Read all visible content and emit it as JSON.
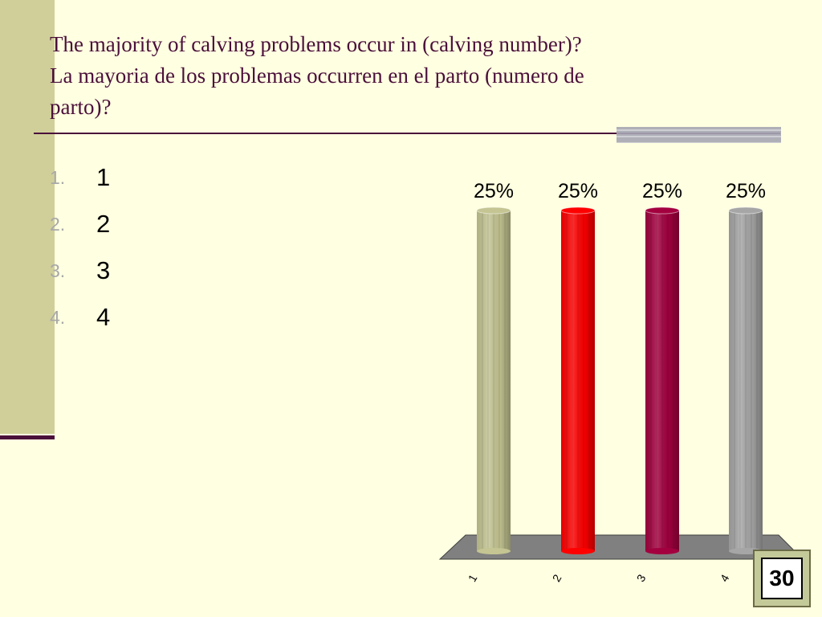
{
  "slide": {
    "title_lines": [
      "The majority of calving problems occur in (calving number)?",
      "La mayoria de los problemas occurren en el parto (numero de",
      "parto)?"
    ]
  },
  "answers": [
    {
      "number": "1.",
      "label": "1"
    },
    {
      "number": "2.",
      "label": "2"
    },
    {
      "number": "3.",
      "label": "3"
    },
    {
      "number": "4.",
      "label": "4"
    }
  ],
  "timer": {
    "value": "30"
  },
  "colors": {
    "background": "#ffffe1",
    "accent": "#4a0f3a",
    "bar_colors": [
      "#c4c592",
      "#ff0000",
      "#a3003f",
      "#a6a6a6"
    ]
  },
  "chart_data": {
    "type": "bar",
    "categories": [
      "1",
      "2",
      "3",
      "4"
    ],
    "values": [
      25,
      25,
      25,
      25
    ],
    "data_labels": [
      "25%",
      "25%",
      "25%",
      "25%"
    ],
    "title": "",
    "xlabel": "",
    "ylabel": "",
    "ylim": [
      0,
      25
    ],
    "grid": false,
    "legend": "none"
  }
}
